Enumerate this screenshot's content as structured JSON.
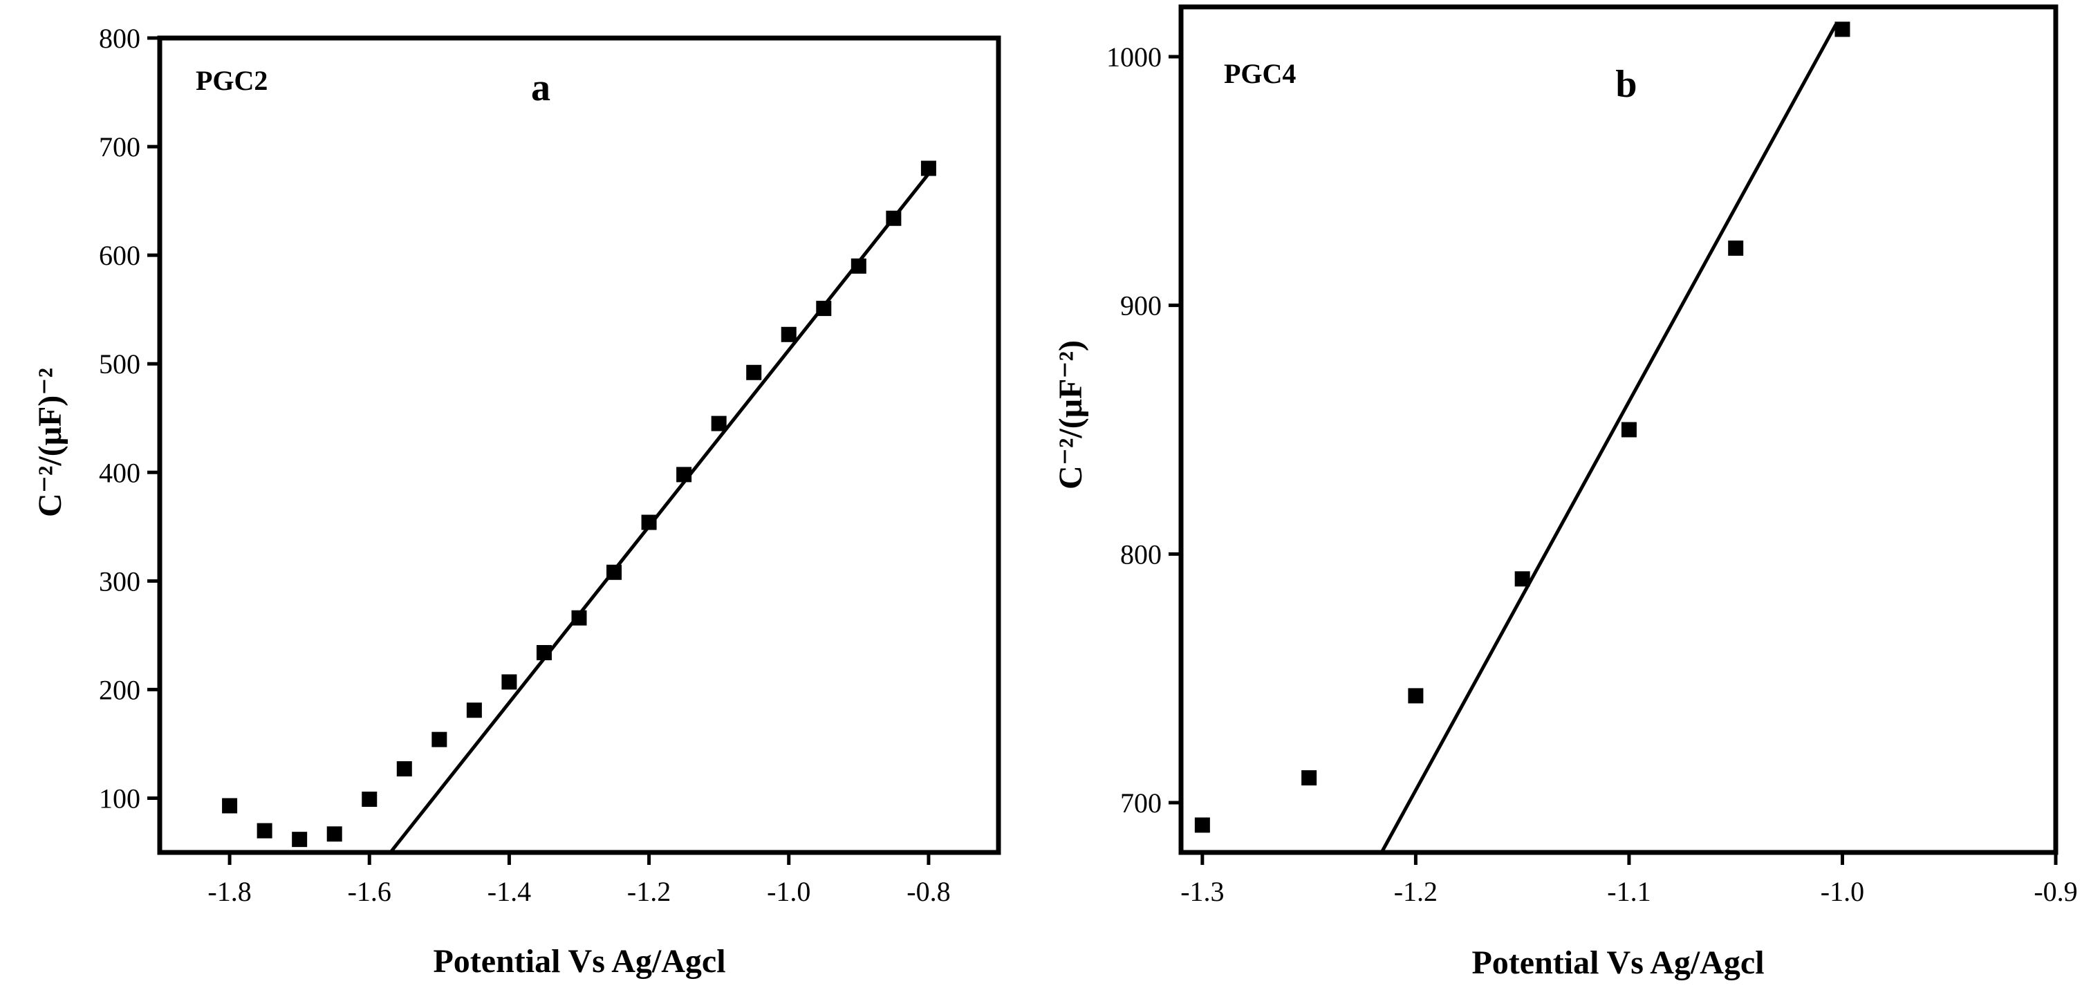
{
  "chart_data": [
    {
      "type": "scatter",
      "panel_letter": "a",
      "series_label": "PGC2",
      "xlabel": "Potential Vs Ag/Agcl",
      "ylabel": "C⁻²/(μF)⁻²",
      "xlim": [
        -1.9,
        -0.7
      ],
      "ylim": [
        50,
        800
      ],
      "x_ticks": [
        -1.8,
        -1.6,
        -1.4,
        -1.2,
        -1.0,
        -0.8
      ],
      "x_tick_labels": [
        "-1.8",
        "-1.6",
        "-1.4",
        "-1.2",
        "-1.0",
        "-0.8"
      ],
      "y_ticks": [
        100,
        200,
        300,
        400,
        500,
        600,
        700,
        800
      ],
      "y_tick_labels": [
        "100",
        "200",
        "300",
        "400",
        "500",
        "600",
        "700",
        "800"
      ],
      "points": [
        {
          "x": -1.8,
          "y": 93
        },
        {
          "x": -1.75,
          "y": 70
        },
        {
          "x": -1.7,
          "y": 62
        },
        {
          "x": -1.65,
          "y": 67
        },
        {
          "x": -1.6,
          "y": 99
        },
        {
          "x": -1.55,
          "y": 127
        },
        {
          "x": -1.5,
          "y": 154
        },
        {
          "x": -1.45,
          "y": 181
        },
        {
          "x": -1.4,
          "y": 207
        },
        {
          "x": -1.35,
          "y": 234
        },
        {
          "x": -1.3,
          "y": 266
        },
        {
          "x": -1.25,
          "y": 308
        },
        {
          "x": -1.2,
          "y": 354
        },
        {
          "x": -1.15,
          "y": 398
        },
        {
          "x": -1.1,
          "y": 445
        },
        {
          "x": -1.05,
          "y": 492
        },
        {
          "x": -1.0,
          "y": 527
        },
        {
          "x": -0.95,
          "y": 551
        },
        {
          "x": -0.9,
          "y": 590
        },
        {
          "x": -0.85,
          "y": 634
        },
        {
          "x": -0.8,
          "y": 680
        }
      ],
      "fit_line": {
        "x1": -1.57,
        "y1": 50,
        "x2": -0.8,
        "y2": 675
      }
    },
    {
      "type": "scatter",
      "panel_letter": "b",
      "series_label": "PGC4",
      "xlabel": "Potential Vs Ag/Agcl",
      "ylabel": "C⁻²/(μF⁻²)",
      "xlim": [
        -1.31,
        -0.9
      ],
      "ylim": [
        680,
        1020
      ],
      "x_ticks": [
        -1.3,
        -1.2,
        -1.1,
        -1.0,
        -0.9
      ],
      "x_tick_labels": [
        "-1.3",
        "-1.2",
        "-1.1",
        "-1.0",
        "-0.9"
      ],
      "y_ticks": [
        700,
        800,
        900,
        1000
      ],
      "y_tick_labels": [
        "700",
        "800",
        "900",
        "1000"
      ],
      "points": [
        {
          "x": -1.3,
          "y": 691
        },
        {
          "x": -1.25,
          "y": 710
        },
        {
          "x": -1.2,
          "y": 743
        },
        {
          "x": -1.15,
          "y": 790
        },
        {
          "x": -1.1,
          "y": 850
        },
        {
          "x": -1.05,
          "y": 923
        },
        {
          "x": -1.0,
          "y": 1011
        }
      ],
      "fit_line": {
        "x1": -1.216,
        "y1": 680,
        "x2": -1.003,
        "y2": 1013
      }
    }
  ]
}
